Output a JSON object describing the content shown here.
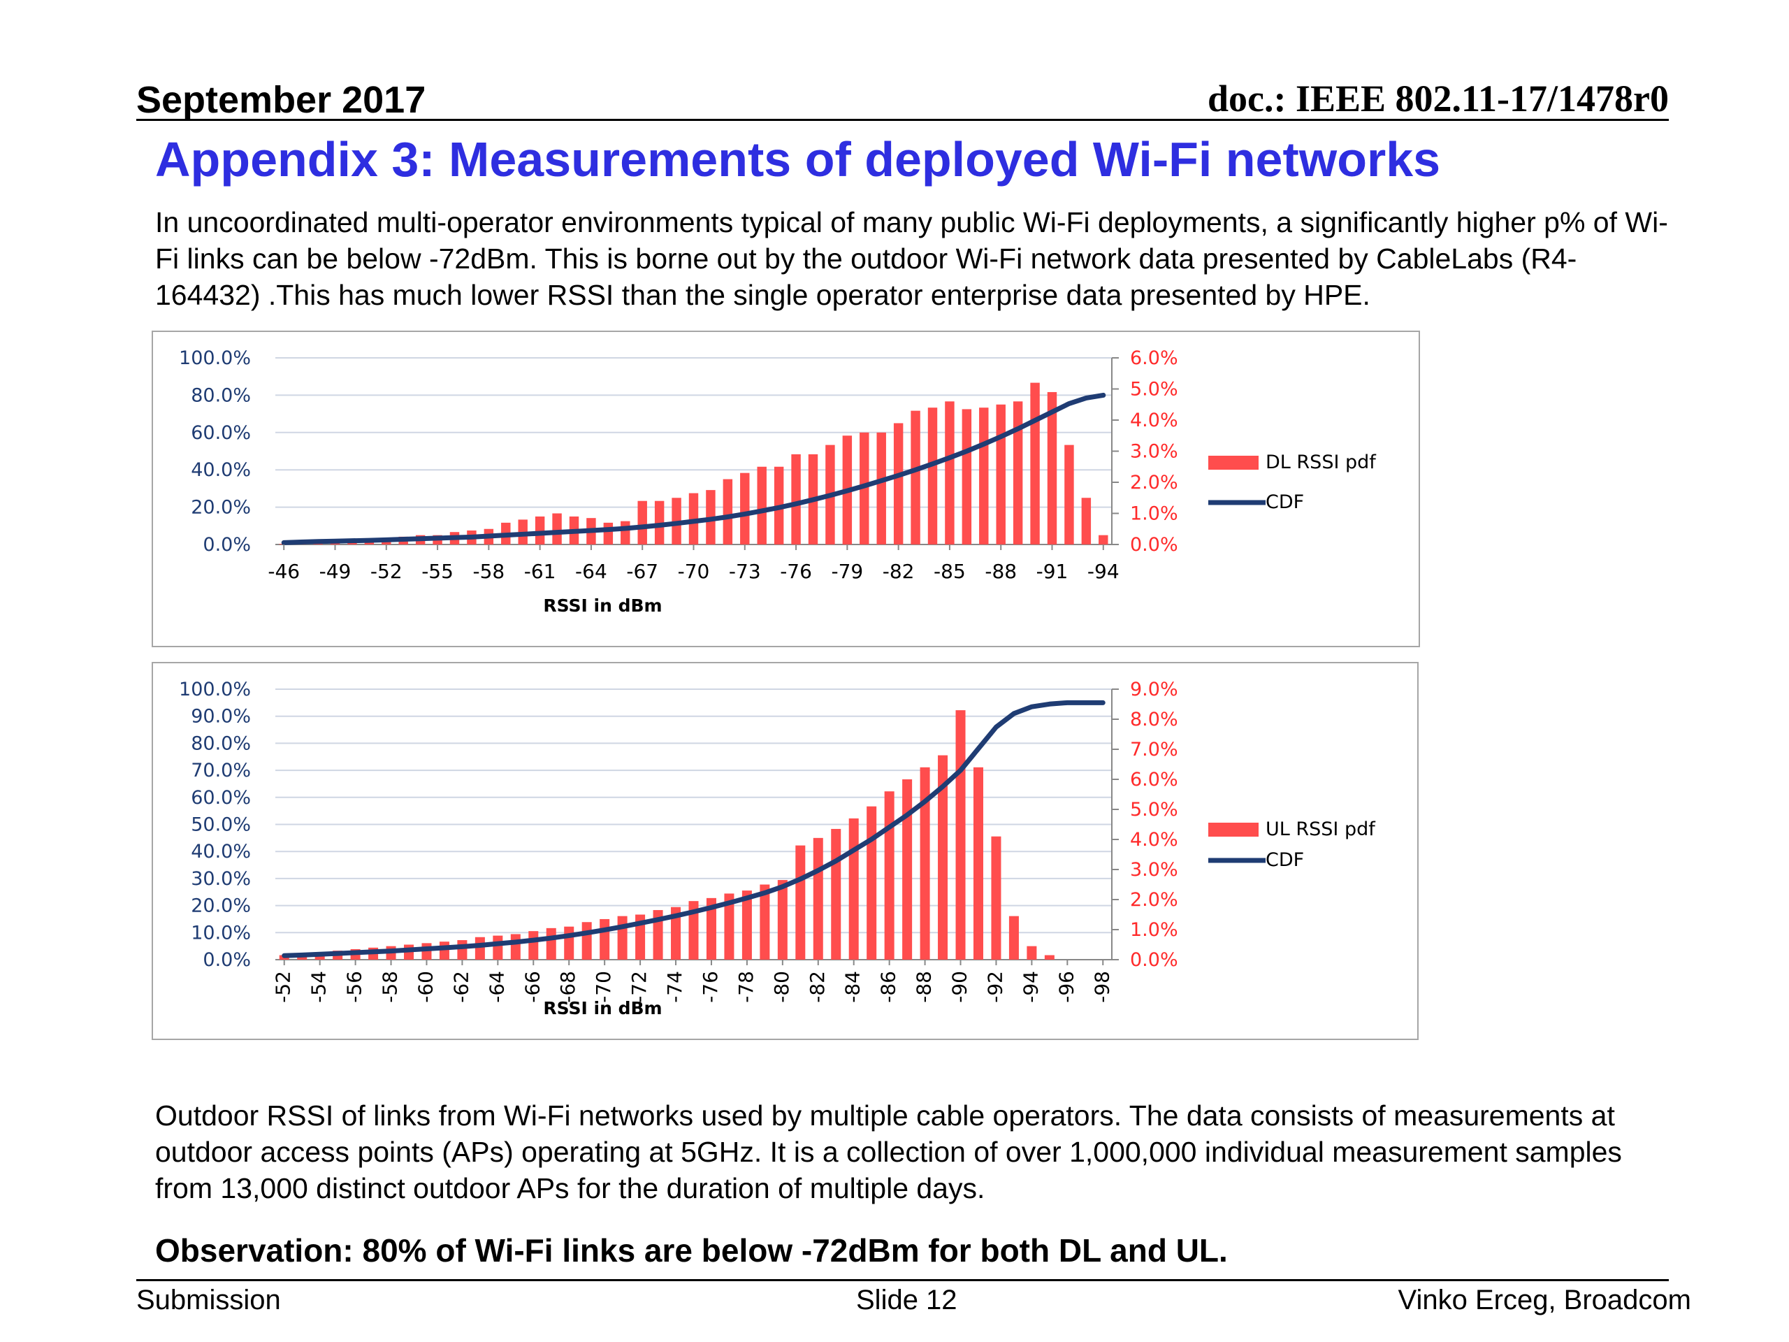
{
  "header": {
    "date": "September 2017",
    "doc": "doc.: IEEE 802.11-17/1478r0"
  },
  "title": "Appendix 3: Measurements of deployed Wi-Fi networks",
  "intro": "In uncoordinated multi-operator environments typical of many public Wi-Fi deployments, a significantly higher p% of Wi-Fi links can be below -72dBm. This is borne out by the outdoor Wi-Fi network data presented by CableLabs (R4-164432) .This has much lower RSSI than the single operator enterprise data presented by HPE.",
  "caption": "Outdoor RSSI of links from Wi-Fi networks used by multiple cable operators. The data consists of measurements at outdoor access points (APs) operating at 5GHz. It is a collection of over 1,000,000 individual measurement samples from 13,000 distinct outdoor APs for the duration of multiple days.",
  "observation": "Observation: 80% of Wi-Fi links are below -72dBm for both DL and UL.",
  "footer": {
    "left": "Submission",
    "center": "Slide 12",
    "right": "Vinko Erceg, Broadcom"
  },
  "colors": {
    "title": "#2e2ee0",
    "bar": "#ff4d4d",
    "cdf": "#1f3c73",
    "right_axis": "#ff2a2a"
  },
  "chart_data": [
    {
      "type": "bar",
      "xlabel": "RSSI in dBm",
      "x_tick_labels": [
        "-46",
        "-49",
        "-52",
        "-55",
        "-58",
        "-61",
        "-64",
        "-67",
        "-70",
        "-73",
        "-76",
        "-79",
        "-82",
        "-85",
        "-88",
        "-91",
        "-94"
      ],
      "y_left_ticks": [
        "100.0%",
        "80.0%",
        "60.0%",
        "40.0%",
        "20.0%",
        "0.0%"
      ],
      "y_right_ticks": [
        "6.0%",
        "5.0%",
        "4.0%",
        "3.0%",
        "2.0%",
        "1.0%",
        "0.0%"
      ],
      "ylim_left": [
        0,
        100
      ],
      "ylim_right": [
        0,
        6
      ],
      "grid": true,
      "legend_position": "right",
      "x": [
        -46,
        -47,
        -48,
        -49,
        -50,
        -51,
        -52,
        -53,
        -54,
        -55,
        -56,
        -57,
        -58,
        -59,
        -60,
        -61,
        -62,
        -63,
        -64,
        -65,
        -66,
        -67,
        -68,
        -69,
        -70,
        -71,
        -72,
        -73,
        -74,
        -75,
        -76,
        -77,
        -78,
        -79,
        -80,
        -81,
        -82,
        -83,
        -84,
        -85,
        -86,
        -87,
        -88,
        -89,
        -90,
        -91,
        -92,
        -93,
        -94
      ],
      "series": [
        {
          "name": "DL RSSI pdf",
          "axis": "right",
          "values": [
            0.02,
            0.03,
            0.05,
            0.1,
            0.12,
            0.15,
            0.2,
            0.25,
            0.3,
            0.3,
            0.4,
            0.45,
            0.5,
            0.7,
            0.8,
            0.9,
            1.0,
            0.9,
            0.85,
            0.7,
            0.75,
            1.4,
            1.4,
            1.5,
            1.65,
            1.75,
            2.1,
            2.3,
            2.5,
            2.5,
            2.9,
            2.9,
            3.2,
            3.5,
            3.6,
            3.6,
            3.9,
            4.3,
            4.4,
            4.6,
            4.35,
            4.4,
            4.5,
            4.6,
            5.2,
            4.9,
            3.2,
            1.5,
            0.3
          ]
        },
        {
          "name": "CDF",
          "axis": "left",
          "values": [
            1,
            1.3,
            1.6,
            1.8,
            2,
            2.2,
            2.5,
            2.8,
            3.1,
            3.4,
            3.7,
            4,
            4.5,
            5,
            5.5,
            6,
            6.5,
            7,
            7.5,
            8,
            8.6,
            9.4,
            10.3,
            11.3,
            12.4,
            13.5,
            14.8,
            16.3,
            18,
            19.8,
            21.8,
            24,
            26.3,
            28.8,
            31.4,
            34.2,
            37,
            40,
            43.2,
            46.5,
            50,
            53.8,
            57.8,
            62,
            66.5,
            71,
            75.5,
            78.5,
            80
          ]
        }
      ]
    },
    {
      "type": "bar",
      "xlabel": "RSSI in dBm",
      "x_tick_labels": [
        "-52",
        "-54",
        "-56",
        "-58",
        "-60",
        "-62",
        "-64",
        "-66",
        "-68",
        "-70",
        "-72",
        "-74",
        "-76",
        "-78",
        "-80",
        "-82",
        "-84",
        "-86",
        "-88",
        "-90",
        "-92",
        "-94",
        "-96",
        "-98"
      ],
      "y_left_ticks": [
        "100.0%",
        "90.0%",
        "80.0%",
        "70.0%",
        "60.0%",
        "50.0%",
        "40.0%",
        "30.0%",
        "20.0%",
        "10.0%",
        "0.0%"
      ],
      "y_right_ticks": [
        "9.0%",
        "8.0%",
        "7.0%",
        "6.0%",
        "5.0%",
        "4.0%",
        "3.0%",
        "2.0%",
        "1.0%",
        "0.0%"
      ],
      "ylim_left": [
        0,
        100
      ],
      "ylim_right": [
        0,
        9
      ],
      "grid": true,
      "legend_position": "right",
      "x": [
        -52,
        -53,
        -54,
        -55,
        -56,
        -57,
        -58,
        -59,
        -60,
        -61,
        -62,
        -63,
        -64,
        -65,
        -66,
        -67,
        -68,
        -69,
        -70,
        -71,
        -72,
        -73,
        -74,
        -75,
        -76,
        -77,
        -78,
        -79,
        -80,
        -81,
        -82,
        -83,
        -84,
        -85,
        -86,
        -87,
        -88,
        -89,
        -90,
        -91,
        -92,
        -93,
        -94,
        -95,
        -96,
        -97,
        -98
      ],
      "series": [
        {
          "name": "UL RSSI pdf",
          "axis": "right",
          "values": [
            0.15,
            0.2,
            0.25,
            0.3,
            0.35,
            0.4,
            0.45,
            0.5,
            0.55,
            0.6,
            0.65,
            0.75,
            0.8,
            0.85,
            0.95,
            1.05,
            1.1,
            1.25,
            1.35,
            1.45,
            1.5,
            1.65,
            1.75,
            1.95,
            2.05,
            2.2,
            2.3,
            2.5,
            2.65,
            3.8,
            4.05,
            4.35,
            4.7,
            5.1,
            5.6,
            6,
            6.4,
            6.8,
            8.3,
            6.4,
            4.1,
            1.45,
            0.45,
            0.15,
            0,
            0,
            0
          ]
        },
        {
          "name": "CDF",
          "axis": "left",
          "values": [
            1.5,
            1.7,
            2,
            2.3,
            2.6,
            2.9,
            3.2,
            3.6,
            4,
            4.4,
            4.8,
            5.3,
            5.9,
            6.5,
            7.2,
            8,
            8.9,
            9.9,
            11,
            12.2,
            13.5,
            14.8,
            16.2,
            17.7,
            19.3,
            21,
            22.8,
            24.7,
            27,
            29.8,
            33,
            36.5,
            40.5,
            44.5,
            49,
            53.5,
            58.5,
            64,
            70,
            78,
            86,
            91,
            93.5,
            94.5,
            95,
            95,
            95
          ]
        }
      ]
    }
  ]
}
